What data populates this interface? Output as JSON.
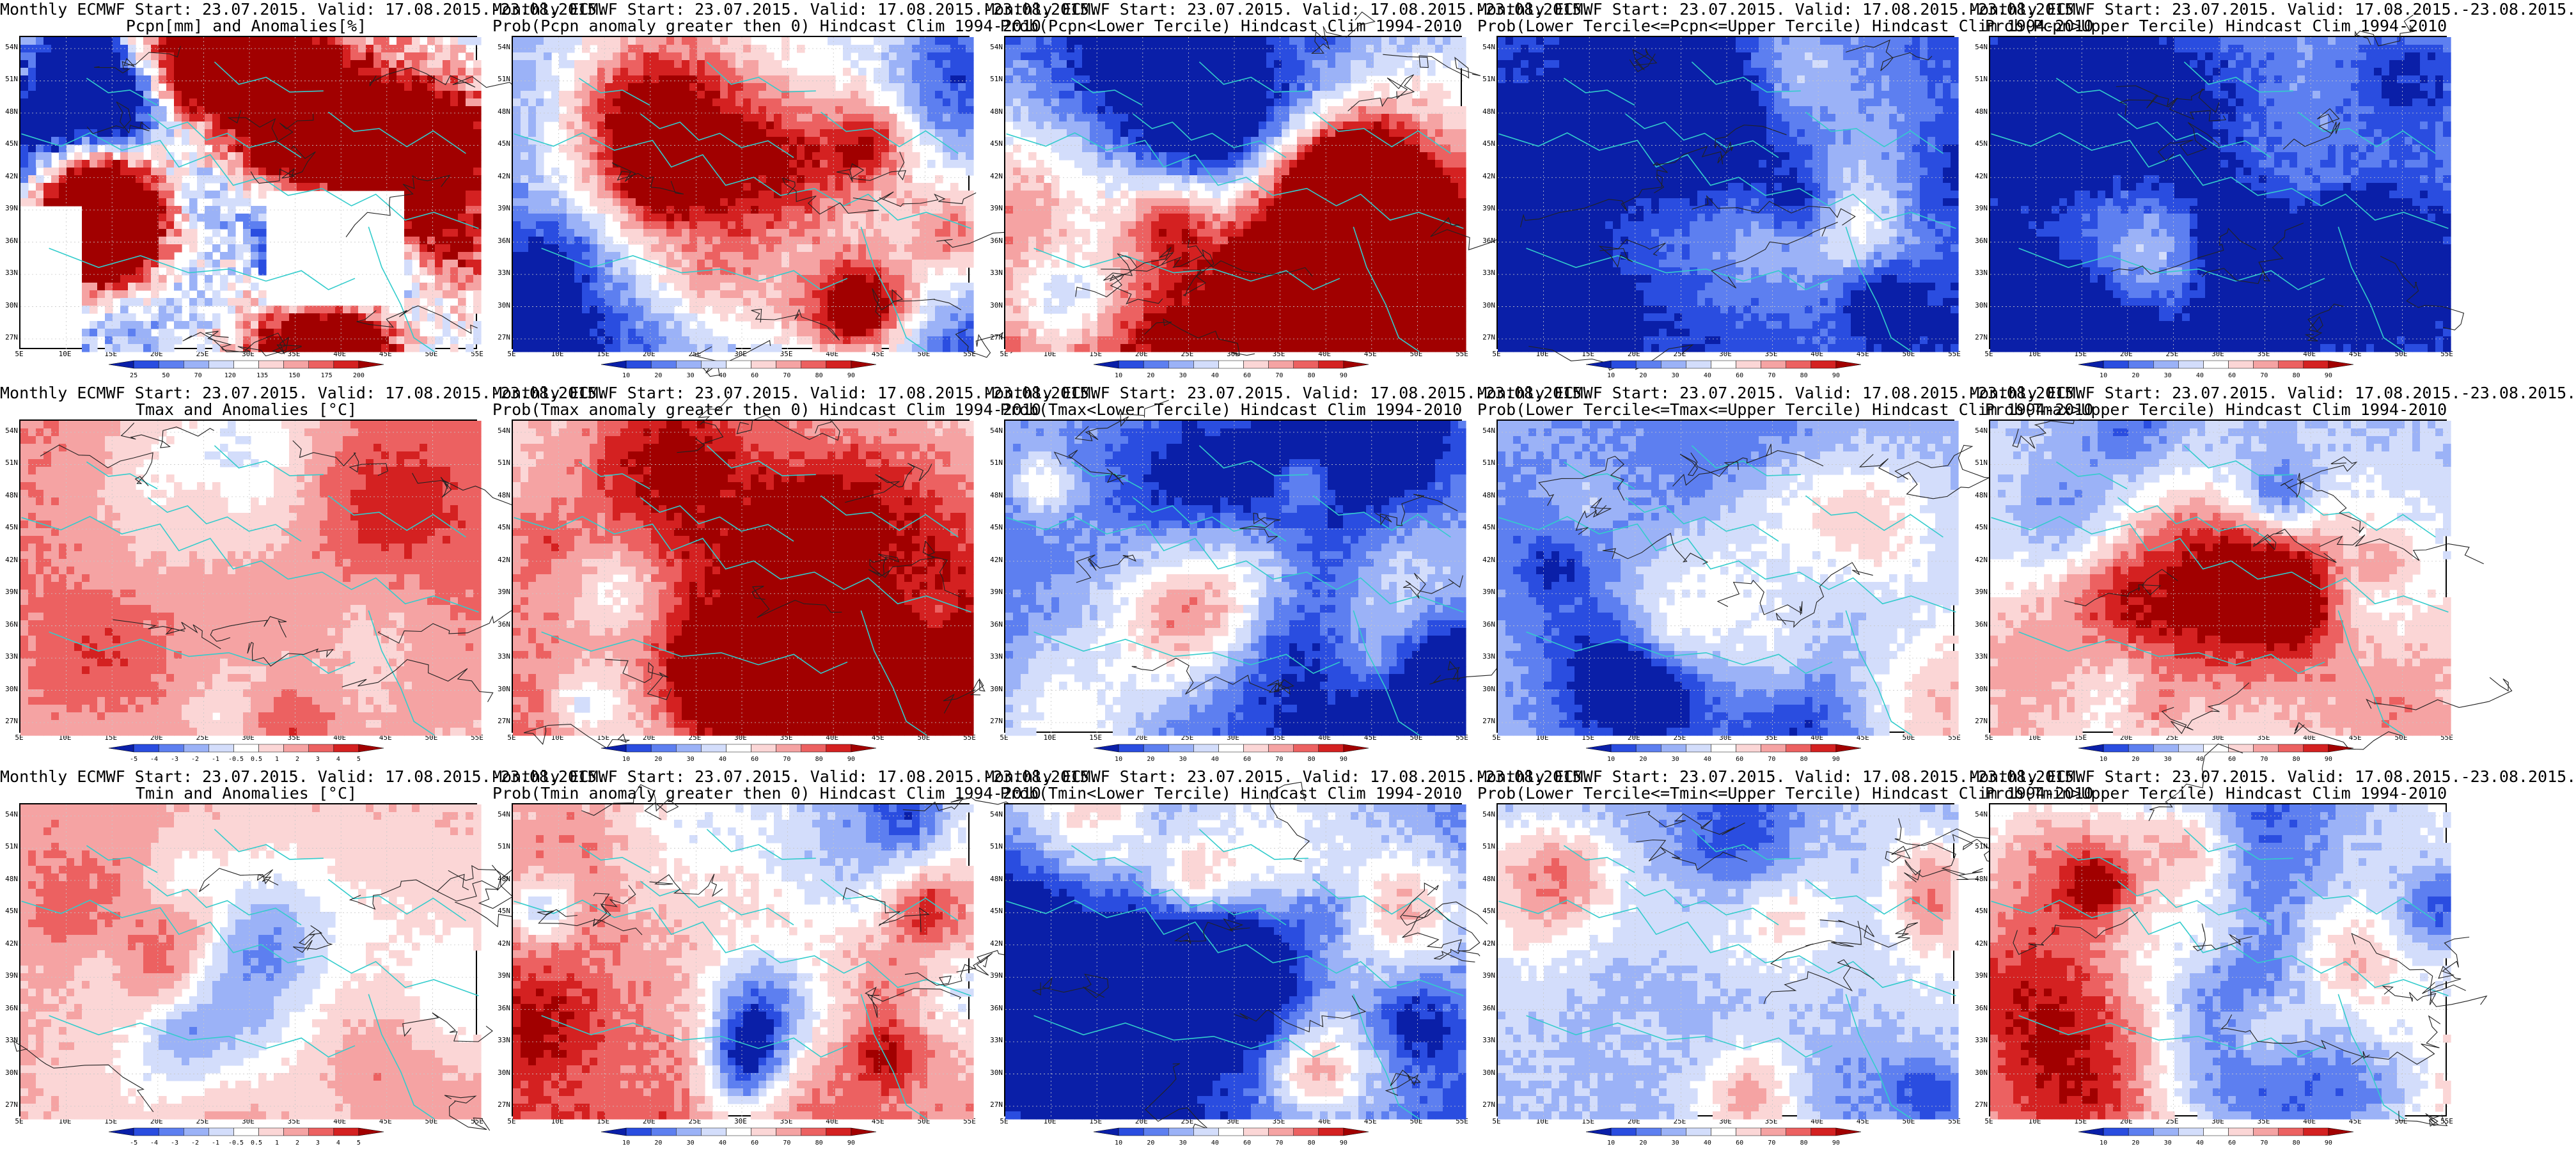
{
  "page": {
    "layout": "3 rows x 5 columns",
    "background": "#ffffff"
  },
  "map_frame": {
    "lat_labels": [
      "54N",
      "51N",
      "48N",
      "45N",
      "42N",
      "39N",
      "36N",
      "33N",
      "30N",
      "27N"
    ],
    "lon_labels": [
      "5E",
      "10E",
      "15E",
      "20E",
      "25E",
      "30E",
      "35E",
      "40E",
      "45E",
      "50E",
      "55E"
    ],
    "land_border_color": "#33cccc",
    "contour_color": "#222222"
  },
  "colorbars": {
    "pcpn_anom": {
      "colors": [
        "#0a1fa8",
        "#2a4de0",
        "#5d7ff0",
        "#9bb2f7",
        "#d3ddfb",
        "#ffffff",
        "#fbd6d6",
        "#f5a3a3",
        "#ec6161",
        "#d42121",
        "#a10000"
      ],
      "labels": [
        "25",
        "50",
        "70",
        "120",
        "135",
        "150",
        "175",
        "200"
      ]
    },
    "prob": {
      "colors": [
        "#0a1fa8",
        "#2a4de0",
        "#5d7ff0",
        "#9bb2f7",
        "#d3ddfb",
        "#ffffff",
        "#fbd6d6",
        "#f5a3a3",
        "#ec6161",
        "#d42121",
        "#a10000"
      ],
      "labels": [
        "10",
        "20",
        "30",
        "40",
        "60",
        "70",
        "80",
        "90"
      ]
    },
    "temp_anom": {
      "colors": [
        "#0a1fa8",
        "#2a4de0",
        "#5d7ff0",
        "#9bb2f7",
        "#d3ddfb",
        "#ffffff",
        "#fbd6d6",
        "#f5a3a3",
        "#ec6161",
        "#d42121",
        "#a10000"
      ],
      "labels": [
        "-5",
        "-4",
        "-3",
        "-2",
        "-1",
        "-0.5",
        "0.5",
        "1",
        "2",
        "3",
        "4",
        "5"
      ]
    }
  },
  "panels": [
    {
      "title1": "Monthly ECMWF Start: 23.07.2015. Valid: 17.08.2015.-23.08.2015.",
      "title2": "Pcpn[mm] and Anomalies[%]",
      "colorbar": "pcpn_anom",
      "field": {
        "kind": "pcpn",
        "base": 0.5,
        "trend": 0.0,
        "var": 0.55,
        "white_holes": true
      }
    },
    {
      "title1": "Monthly ECMWF Start: 23.07.2015. Valid: 17.08.2015.-23.08.2015.",
      "title2": "Prob(Pcpn anomaly greater then 0) Hindcast Clim 1994-2010",
      "colorbar": "prob",
      "field": {
        "kind": "prob",
        "base": 0.25,
        "trend": -0.15,
        "var": 0.22
      }
    },
    {
      "title1": "Monthly ECMWF Start: 23.07.2015. Valid: 17.08.2015.-23.08.2015.",
      "title2": "Prob(Pcpn<Lower Tercile) Hindcast Clim 1994-2010",
      "colorbar": "prob",
      "field": {
        "kind": "prob",
        "base": 0.55,
        "trend": 0.35,
        "var": 0.22
      }
    },
    {
      "title1": "Monthly ECMWF Start: 23.07.2015. Valid: 17.08.2015.-23.08.2015.",
      "title2": "Prob(Lower Tercile<=Pcpn<=Upper Tercile) Hindcast Clim 1994-2010",
      "colorbar": "prob",
      "field": {
        "kind": "prob",
        "base": 0.12,
        "trend": 0.0,
        "var": 0.15
      }
    },
    {
      "title1": "Monthly ECMWF Start: 23.07.2015. Valid: 17.08.2015.-23.08.2015.",
      "title2": "Prob(Pcpn>Upper Tercile) Hindcast Clim 1994-2010",
      "colorbar": "prob",
      "field": {
        "kind": "prob",
        "base": 0.22,
        "trend": -0.1,
        "var": 0.2
      }
    },
    {
      "title1": "Monthly ECMWF Start: 23.07.2015. Valid: 17.08.2015.-23.08.2015.",
      "title2": "Tmax and Anomalies [°C]",
      "colorbar": "temp_anom",
      "field": {
        "kind": "temp",
        "base": 0.66,
        "trend": -0.06,
        "var": 0.1
      }
    },
    {
      "title1": "Monthly ECMWF Start: 23.07.2015. Valid: 17.08.2015.-23.08.2015.",
      "title2": "Prob(Tmax anomaly greater then 0) Hindcast Clim 1994-2010",
      "colorbar": "prob",
      "field": {
        "kind": "prob",
        "base": 0.7,
        "trend": 0.1,
        "var": 0.17
      }
    },
    {
      "title1": "Monthly ECMWF Start: 23.07.2015. Valid: 17.08.2015.-23.08.2015.",
      "title2": "Prob(Tmax<Lower Tercile) Hindcast Clim 1994-2010",
      "colorbar": "prob",
      "field": {
        "kind": "prob",
        "base": 0.2,
        "trend": -0.08,
        "var": 0.16
      }
    },
    {
      "title1": "Monthly ECMWF Start: 23.07.2015. Valid: 17.08.2015.-23.08.2015.",
      "title2": "Prob(Lower Tercile<=Tmax<=Upper Tercile) Hindcast Clim 1994-2010",
      "colorbar": "prob",
      "field": {
        "kind": "prob",
        "base": 0.33,
        "trend": 0.0,
        "var": 0.13
      }
    },
    {
      "title1": "Monthly ECMWF Start: 23.07.2015. Valid: 17.08.2015.-23.08.2015.",
      "title2": "Prob(Tmax>Upper Tercile) Hindcast Clim 1994-2010",
      "colorbar": "prob",
      "field": {
        "kind": "prob",
        "base": 0.46,
        "trend": 0.1,
        "var": 0.15
      }
    },
    {
      "title1": "Monthly ECMWF Start: 23.07.2015. Valid: 17.08.2015.-23.08.2015.",
      "title2": "Tmin and Anomalies [°C]",
      "colorbar": "temp_anom",
      "field": {
        "kind": "temp",
        "base": 0.64,
        "trend": 0.0,
        "var": 0.09
      }
    },
    {
      "title1": "Monthly ECMWF Start: 23.07.2015. Valid: 17.08.2015.-23.08.2015.",
      "title2": "Prob(Tmin anomaly greater then 0) Hindcast Clim 1994-2010",
      "colorbar": "prob",
      "field": {
        "kind": "prob",
        "base": 0.7,
        "trend": 0.12,
        "var": 0.18
      }
    },
    {
      "title1": "Monthly ECMWF Start: 23.07.2015. Valid: 17.08.2015.-23.08.2015.",
      "title2": "Prob(Tmin<Lower Tercile) Hindcast Clim 1994-2010",
      "colorbar": "prob",
      "field": {
        "kind": "prob",
        "base": 0.2,
        "trend": -0.05,
        "var": 0.17
      }
    },
    {
      "title1": "Monthly ECMWF Start: 23.07.2015. Valid: 17.08.2015.-23.08.2015.",
      "title2": "Prob(Lower Tercile<=Tmin<=Upper Tercile) Hindcast Clim 1994-2010",
      "colorbar": "prob",
      "field": {
        "kind": "prob",
        "base": 0.32,
        "trend": 0.02,
        "var": 0.14
      }
    },
    {
      "title1": "Monthly ECMWF Start: 23.07.2015. Valid: 17.08.2015.-23.08.2015.",
      "title2": "Prob(Tmin>Upper Tercile) Hindcast Clim 1994-2010",
      "colorbar": "prob",
      "field": {
        "kind": "prob",
        "base": 0.48,
        "trend": 0.1,
        "var": 0.16
      }
    }
  ]
}
